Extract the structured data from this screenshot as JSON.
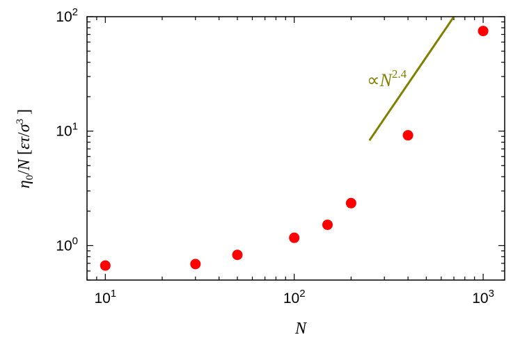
{
  "chart_data": {
    "type": "scatter",
    "x_scale": "log",
    "y_scale": "log",
    "xlim": [
      8,
      1300
    ],
    "ylim": [
      0.5,
      100
    ],
    "xlabel": "N",
    "ylabel": "η0/N [ετ/σ3]",
    "x_ticks": [
      {
        "base": "10",
        "exp": "1"
      },
      {
        "base": "10",
        "exp": "2"
      },
      {
        "base": "10",
        "exp": "3"
      }
    ],
    "y_ticks": [
      {
        "base": "10",
        "exp": "0"
      },
      {
        "base": "10",
        "exp": "1"
      },
      {
        "base": "10",
        "exp": "2"
      }
    ],
    "series": [
      {
        "color": "#ff0000",
        "marker": "circle",
        "x": [
          10,
          30,
          50,
          100,
          150,
          200,
          400,
          1000
        ],
        "y": [
          0.67,
          0.69,
          0.83,
          1.17,
          1.52,
          2.35,
          9.2,
          75
        ]
      }
    ],
    "guide_line": {
      "label": "∝N2.4",
      "color": "#808000",
      "x": [
        250,
        700
      ],
      "y": [
        8.3,
        100
      ]
    },
    "grid": false,
    "legend": "none"
  }
}
